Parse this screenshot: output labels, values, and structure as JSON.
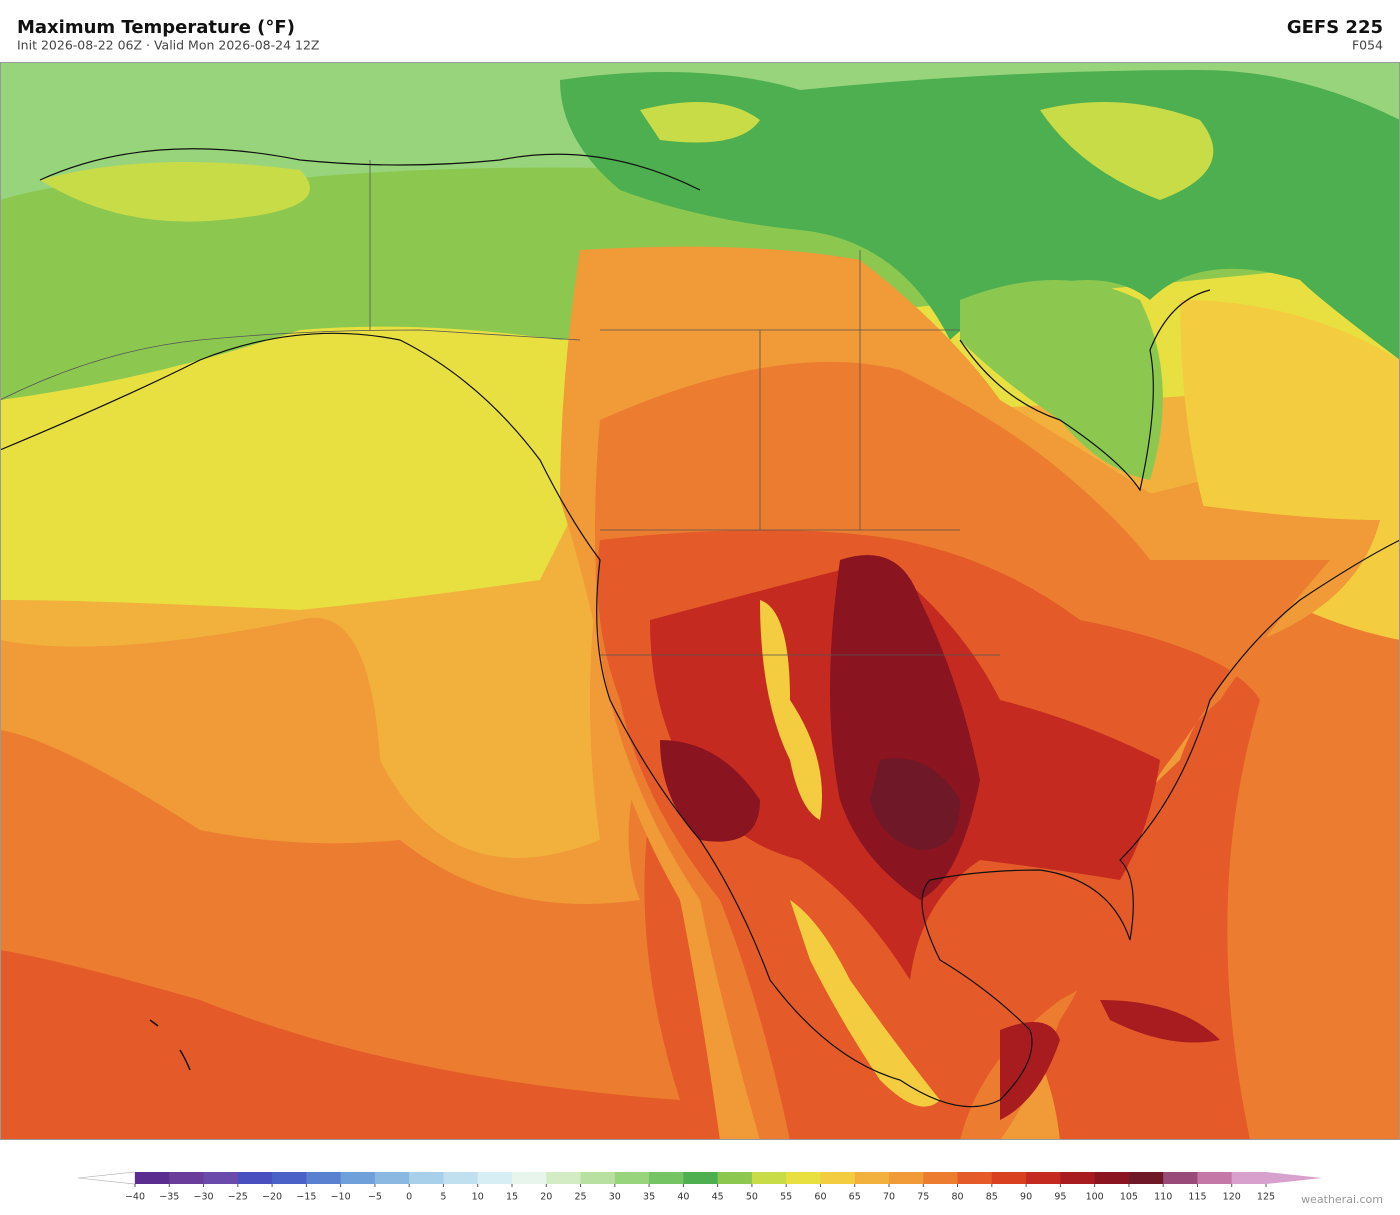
{
  "header": {
    "title": "Maximum Temperature  (°F)",
    "subtitle": "Init 2026-08-22 06Z   ·   Valid Mon 2026-08-24 12Z",
    "model": "GEFS  225",
    "forecast_hour": "F054"
  },
  "colorbar": {
    "ticks": [
      {
        "value": -40,
        "label": "−40"
      },
      {
        "value": -35,
        "label": "−35"
      },
      {
        "value": -30,
        "label": "−30"
      },
      {
        "value": -25,
        "label": "−25"
      },
      {
        "value": -20,
        "label": "−20"
      },
      {
        "value": -15,
        "label": "−15"
      },
      {
        "value": -10,
        "label": "−10"
      },
      {
        "value": -5,
        "label": "−5"
      },
      0,
      5,
      10,
      15,
      20,
      25,
      30,
      35,
      40,
      45,
      50,
      55,
      60,
      65,
      70,
      75,
      80,
      85,
      90,
      95,
      100,
      105,
      110,
      115,
      120,
      125
    ],
    "colors": [
      "#5b2d8e",
      "#6a3d9a",
      "#6a4aaa",
      "#4a4fc0",
      "#4a62c8",
      "#5a80d0",
      "#6fa0da",
      "#8ab8e0",
      "#a8d0ea",
      "#c0e0f0",
      "#d8eef5",
      "#e8f5ec",
      "#d4ecc4",
      "#b8e0a0",
      "#98d47c",
      "#74c464",
      "#4eaf50",
      "#8cc850",
      "#c8dc48",
      "#e8e040",
      "#f4cc40",
      "#f2b03c",
      "#f09a38",
      "#ec7c30",
      "#e45a28",
      "#d84020",
      "#c42a20",
      "#a81c20",
      "#8a1420",
      "#6e1828",
      "#9a4a78",
      "#c478a8",
      "#d8a0cc"
    ],
    "under_color": "#ffffff",
    "over_color": "#d8a0cc"
  },
  "credit": "weatherai.com"
}
